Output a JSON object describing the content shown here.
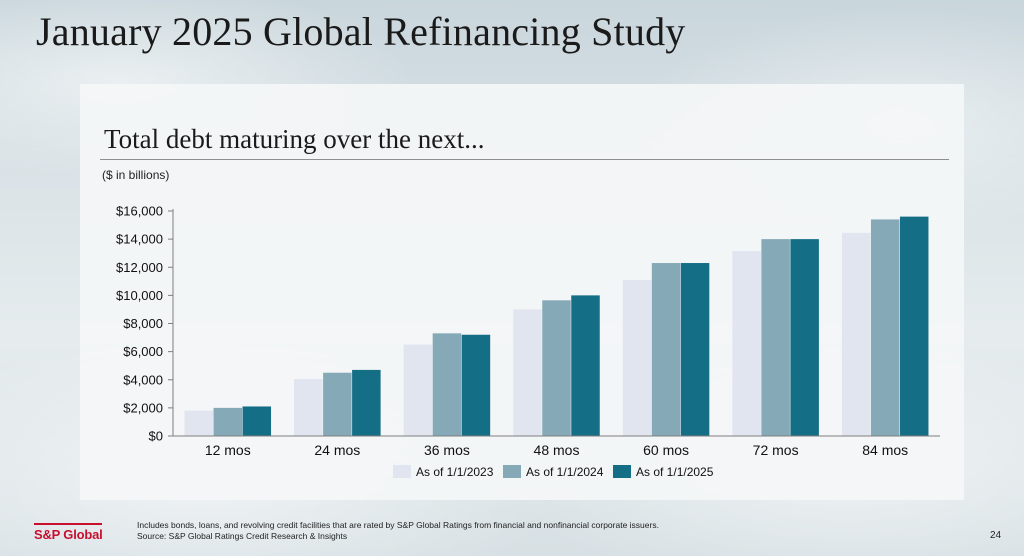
{
  "header": {
    "title": "January 2025 Global Refinancing Study"
  },
  "panel": {
    "title": "Total debt maturing over the next...",
    "units": "($ in billions)"
  },
  "chart_data": {
    "type": "bar",
    "categories": [
      "12 mos",
      "24 mos",
      "36 mos",
      "48 mos",
      "60 mos",
      "72 mos",
      "84 mos"
    ],
    "series": [
      {
        "name": "As of 1/1/2023",
        "color": "#e1e5f0",
        "values": [
          1800,
          4050,
          6500,
          9000,
          11100,
          13150,
          14450
        ]
      },
      {
        "name": "As of 1/1/2024",
        "color": "#85a9b7",
        "values": [
          2000,
          4500,
          7300,
          9650,
          12300,
          14000,
          15400
        ]
      },
      {
        "name": "As of 1/1/2025",
        "color": "#146e85",
        "values": [
          2100,
          4700,
          7200,
          10000,
          12300,
          14000,
          15600
        ]
      }
    ],
    "ylim": [
      0,
      16000
    ],
    "yticks": [
      "$0",
      "$2,000",
      "$4,000",
      "$6,000",
      "$8,000",
      "$10,000",
      "$12,000",
      "$14,000",
      "$16,000"
    ],
    "title": "",
    "xlabel": "",
    "ylabel": "",
    "grid": false,
    "legend": "bottom"
  },
  "footer": {
    "logo": "S&P Global",
    "note_line1": "Includes bonds, loans, and revolving credit facilities that are rated by S&P Global Ratings from financial and nonfinancial corporate issuers.",
    "note_line2": "Source: S&P Global Ratings Credit Research & Insights",
    "page_number": "24"
  }
}
